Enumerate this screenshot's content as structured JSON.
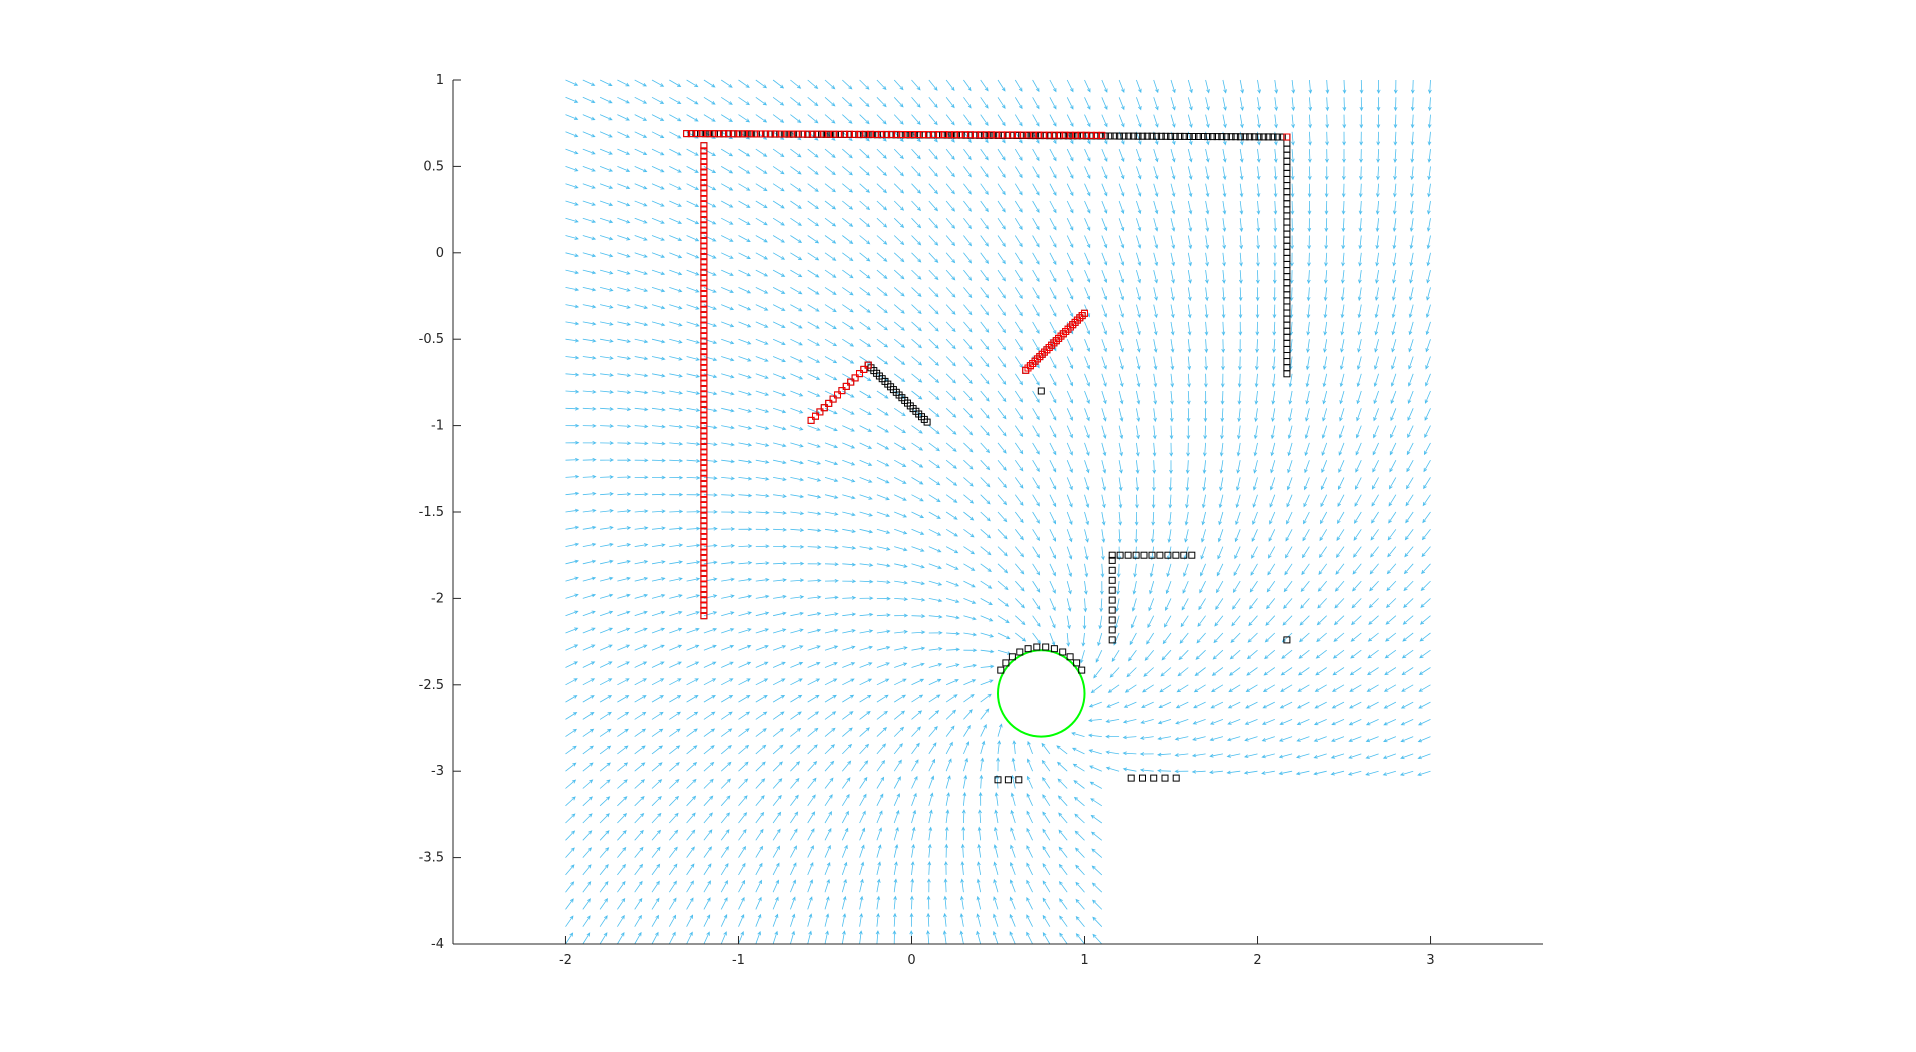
{
  "chart_data": {
    "type": "scatter",
    "title": "",
    "xlabel": "",
    "ylabel": "",
    "xlim": [
      -2.65,
      3.65
    ],
    "ylim": [
      -4,
      1
    ],
    "x_ticks": [
      -2,
      -1,
      0,
      1,
      2,
      3
    ],
    "y_ticks": [
      1,
      0.5,
      0,
      -0.5,
      -1,
      -1.5,
      -2,
      -2.5,
      -3,
      -3.5,
      -4
    ],
    "x_tick_labels": [
      "-2",
      "-1",
      "0",
      "1",
      "2",
      "3"
    ],
    "y_tick_labels": [
      "1",
      "0.5",
      "0",
      "-0.5",
      "-1",
      "-1.5",
      "-2",
      "-2.5",
      "-3",
      "-3.5",
      "-4"
    ],
    "grid": false,
    "legend": "none",
    "colors": {
      "quiver": "#4dbeee",
      "scan_points": "#000000",
      "matched_points": "#ff0000",
      "robot_circle": "#00ff00",
      "axes": "#262626"
    },
    "quiver_field": {
      "x_range": [
        -2,
        3
      ],
      "y_range": [
        -4,
        1
      ],
      "step": 0.1,
      "attractor": [
        0.75,
        -2.55
      ],
      "faded_region": {
        "x": [
          1.15,
          3
        ],
        "y": [
          -4,
          -3.1
        ]
      }
    },
    "robot": {
      "center": [
        0.75,
        -2.55
      ],
      "radius": 0.25
    },
    "series": [
      {
        "kind": "scan_points",
        "segments": [
          {
            "from": [
              -1.3,
              0.69
            ],
            "to": [
              2.17,
              0.67
            ],
            "n": 130
          },
          {
            "from": [
              2.17,
              0.67
            ],
            "to": [
              2.17,
              -0.7
            ],
            "n": 40
          },
          {
            "from": [
              -1.2,
              0.62
            ],
            "to": [
              -1.2,
              -2.1
            ],
            "n": 90
          },
          {
            "from": [
              -0.58,
              -0.97
            ],
            "to": [
              -0.25,
              -0.65
            ],
            "n": 14
          },
          {
            "from": [
              -0.25,
              -0.65
            ],
            "to": [
              0.09,
              -0.98
            ],
            "n": 22
          },
          {
            "from": [
              0.66,
              -0.68
            ],
            "to": [
              1.0,
              -0.35
            ],
            "n": 26
          },
          {
            "from": [
              1.16,
              -1.75
            ],
            "to": [
              1.62,
              -1.75
            ],
            "n": 11
          },
          {
            "from": [
              1.16,
              -1.78
            ],
            "to": [
              1.16,
              -2.24
            ],
            "n": 9
          },
          {
            "from": [
              0.5,
              -3.05
            ],
            "to": [
              0.62,
              -3.05
            ],
            "n": 3
          },
          {
            "from": [
              1.27,
              -3.04
            ],
            "to": [
              1.53,
              -3.04
            ],
            "n": 5
          }
        ],
        "points": [
          [
            0.75,
            -0.8
          ],
          [
            2.17,
            -2.24
          ]
        ],
        "arc": {
          "center": [
            0.75,
            -2.55
          ],
          "radius": 0.27,
          "from_deg": 30,
          "to_deg": 150,
          "n": 12
        }
      },
      {
        "kind": "matched_points",
        "segments": [
          {
            "from": [
              -1.3,
              0.69
            ],
            "to": [
              1.1,
              0.68
            ],
            "n": 80
          },
          {
            "from": [
              -1.2,
              0.62
            ],
            "to": [
              -1.2,
              -2.1
            ],
            "n": 90
          },
          {
            "from": [
              -0.58,
              -0.97
            ],
            "to": [
              -0.25,
              -0.65
            ],
            "n": 14
          },
          {
            "from": [
              0.66,
              -0.68
            ],
            "to": [
              1.0,
              -0.35
            ],
            "n": 26
          }
        ],
        "points": [
          [
            2.17,
            0.67
          ]
        ]
      }
    ]
  }
}
